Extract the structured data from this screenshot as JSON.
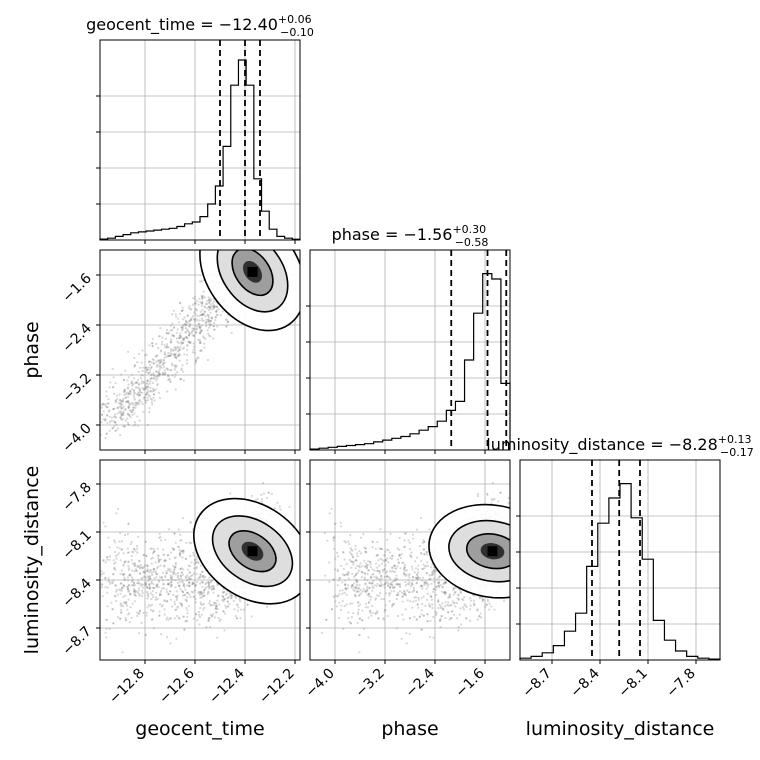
{
  "chart_data": {
    "type": "corner",
    "parameters": [
      "geocent_time",
      "phase",
      "luminosity_distance"
    ],
    "titles": [
      {
        "name": "geocent_time",
        "median": "−12.40",
        "plus": "+0.06",
        "minus": "−0.10"
      },
      {
        "name": "phase",
        "median": "−1.56",
        "plus": "+0.30",
        "minus": "−0.58"
      },
      {
        "name": "luminosity_distance",
        "median": "−8.28",
        "plus": "+0.13",
        "minus": "−0.17"
      }
    ],
    "ranges": {
      "geocent_time": [
        -12.98,
        -12.18
      ],
      "phase": [
        -4.4,
        -1.2
      ],
      "luminosity_distance": [
        -8.9,
        -7.65
      ]
    },
    "ticks": {
      "geocent_time": {
        "values": [
          -12.8,
          -12.6,
          -12.4,
          -12.2
        ],
        "labels": [
          "−12.8",
          "−12.6",
          "−12.4",
          "−12.2"
        ]
      },
      "phase": {
        "values": [
          -4.0,
          -3.2,
          -2.4,
          -1.6
        ],
        "labels": [
          "−4.0",
          "−3.2",
          "−2.4",
          "−1.6"
        ]
      },
      "luminosity_distance": {
        "values": [
          -8.7,
          -8.4,
          -8.1,
          -7.8
        ],
        "labels": [
          "−8.7",
          "−8.4",
          "−8.1",
          "−7.8"
        ]
      }
    },
    "quantiles": {
      "geocent_time": [
        -12.5,
        -12.4,
        -12.34
      ],
      "phase": [
        -2.14,
        -1.56,
        -1.26
      ],
      "luminosity_distance": [
        -8.45,
        -8.28,
        -8.15
      ]
    },
    "histograms": {
      "geocent_time": [
        0.005,
        0.01,
        0.02,
        0.03,
        0.04,
        0.045,
        0.05,
        0.055,
        0.06,
        0.065,
        0.075,
        0.09,
        0.1,
        0.13,
        0.2,
        0.3,
        0.52,
        0.86,
        1.0,
        0.86,
        0.34,
        0.16,
        0.06,
        0.02,
        0.01,
        0.004
      ],
      "phase": [
        0.005,
        0.01,
        0.015,
        0.02,
        0.025,
        0.03,
        0.035,
        0.045,
        0.055,
        0.065,
        0.075,
        0.09,
        0.11,
        0.13,
        0.16,
        0.22,
        0.27,
        0.5,
        0.76,
        0.98,
        0.95,
        0.37
      ],
      "luminosity_distance": [
        0.01,
        0.02,
        0.04,
        0.08,
        0.16,
        0.26,
        0.52,
        0.76,
        0.9,
        0.98,
        0.79,
        0.56,
        0.22,
        0.11,
        0.05,
        0.02,
        0.01,
        0.005
      ]
    },
    "grid": true,
    "grid_color": "#b0b0b0",
    "line_color": "#000000",
    "scatter_color": "#8c8c8c"
  }
}
